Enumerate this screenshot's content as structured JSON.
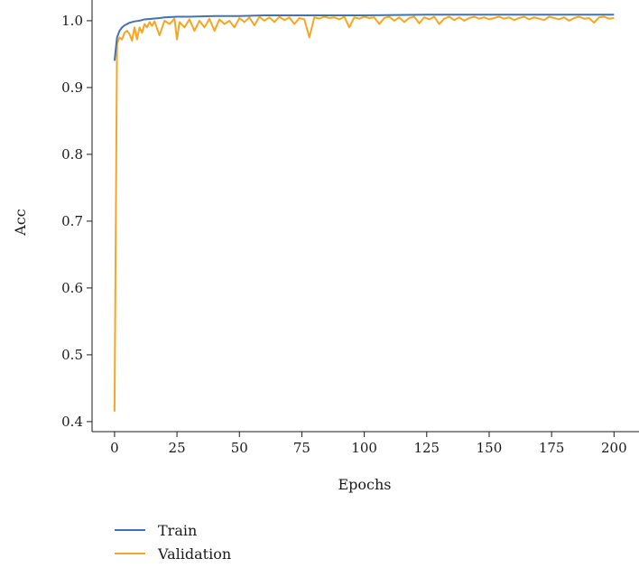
{
  "chart_data": {
    "type": "line",
    "title": "",
    "xlabel": "Epochs",
    "ylabel": "Acc",
    "xlim": [
      -9,
      210
    ],
    "ylim": [
      0.385,
      1.031
    ],
    "x_ticks": [
      0,
      25,
      50,
      75,
      100,
      125,
      150,
      175,
      200
    ],
    "y_ticks": [
      0.4,
      0.5,
      0.6,
      0.7,
      0.8,
      0.9,
      1.0
    ],
    "x_tick_labels": [
      "0",
      "25",
      "50",
      "75",
      "100",
      "125",
      "150",
      "175",
      "200"
    ],
    "y_tick_labels": [
      "0.4",
      "0.5",
      "0.6",
      "0.7",
      "0.8",
      "0.9",
      "1.0"
    ],
    "grid": false,
    "legend_position": "bottom-left, below plot",
    "series": [
      {
        "name": "Train",
        "color": "#4472b0",
        "x": [
          0,
          1,
          2,
          3,
          4,
          5,
          6,
          8,
          10,
          12,
          15,
          18,
          20,
          25,
          30,
          40,
          50,
          60,
          75,
          100,
          125,
          150,
          175,
          200
        ],
        "y": [
          0.94,
          0.975,
          0.985,
          0.99,
          0.993,
          0.995,
          0.997,
          0.999,
          1.0,
          1.002,
          1.003,
          1.004,
          1.005,
          1.006,
          1.006,
          1.007,
          1.007,
          1.008,
          1.008,
          1.008,
          1.009,
          1.009,
          1.009,
          1.009
        ]
      },
      {
        "name": "Validation",
        "color": "#f5a623",
        "x": [
          0,
          1,
          2,
          3,
          4,
          5,
          6,
          7,
          8,
          9,
          10,
          11,
          12,
          13,
          14,
          15,
          16,
          18,
          20,
          22,
          24,
          25,
          26,
          28,
          30,
          32,
          34,
          36,
          38,
          40,
          42,
          44,
          46,
          48,
          50,
          52,
          54,
          56,
          58,
          60,
          62,
          64,
          66,
          68,
          70,
          72,
          74,
          76,
          78,
          80,
          82,
          84,
          86,
          88,
          90,
          92,
          94,
          96,
          98,
          100,
          102,
          104,
          106,
          108,
          110,
          112,
          114,
          116,
          118,
          120,
          122,
          124,
          126,
          128,
          130,
          132,
          134,
          136,
          138,
          140,
          142,
          144,
          146,
          148,
          150,
          152,
          154,
          156,
          158,
          160,
          162,
          164,
          166,
          168,
          170,
          172,
          174,
          176,
          178,
          180,
          182,
          184,
          186,
          188,
          190,
          192,
          194,
          196,
          198,
          200
        ],
        "y": [
          0.415,
          0.965,
          0.975,
          0.972,
          0.982,
          0.985,
          0.98,
          0.97,
          0.99,
          0.972,
          0.99,
          0.982,
          0.995,
          0.99,
          0.998,
          0.992,
          0.999,
          0.978,
          1.0,
          0.995,
          1.003,
          0.972,
          0.998,
          0.99,
          1.002,
          0.985,
          1.0,
          0.99,
          1.003,
          0.985,
          1.002,
          0.995,
          1.0,
          0.99,
          1.004,
          0.998,
          1.005,
          0.993,
          1.006,
          1.0,
          1.005,
          0.998,
          1.006,
          1.001,
          1.005,
          0.995,
          1.004,
          1.002,
          0.975,
          1.005,
          1.003,
          1.006,
          1.004,
          1.005,
          1.002,
          1.006,
          0.99,
          1.005,
          1.003,
          1.006,
          1.004,
          1.005,
          0.995,
          1.004,
          1.006,
          1.0,
          1.005,
          0.998,
          1.004,
          1.006,
          0.996,
          1.005,
          1.002,
          1.006,
          0.995,
          1.003,
          1.006,
          1.001,
          1.005,
          1.0,
          1.004,
          1.006,
          1.003,
          1.005,
          1.002,
          1.004,
          1.006,
          1.003,
          1.005,
          1.001,
          1.004,
          1.006,
          1.002,
          1.005,
          1.003,
          1.001,
          1.006,
          1.004,
          1.002,
          1.005,
          1.0,
          1.004,
          1.006,
          1.003,
          1.004,
          0.997,
          1.005,
          1.006,
          1.003,
          1.004
        ]
      }
    ]
  }
}
